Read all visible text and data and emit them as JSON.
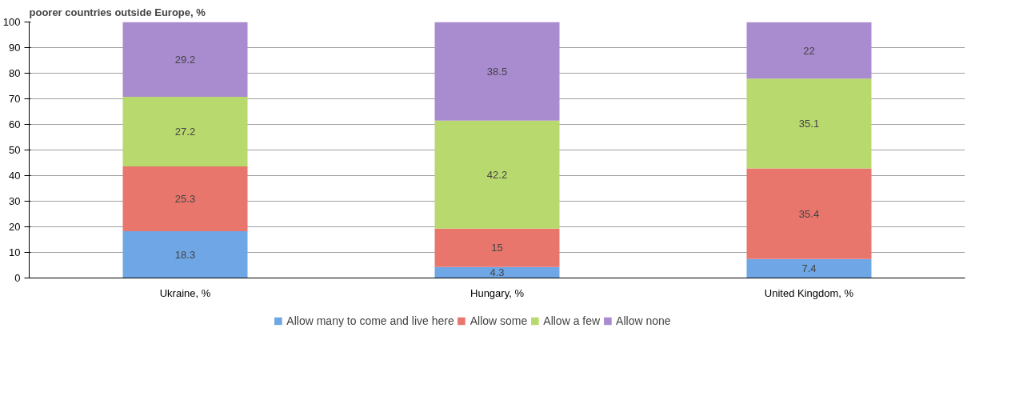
{
  "chart_data": {
    "type": "bar",
    "stacked": true,
    "title": "poorer countries outside Europe, %",
    "categories": [
      "Ukraine, %",
      "Hungary, %",
      "United Kingdom, %"
    ],
    "series": [
      {
        "name": "Allow many to come and live here",
        "color": "#6fa6e6",
        "values": [
          18.3,
          4.3,
          7.4
        ]
      },
      {
        "name": "Allow some",
        "color": "#e8766c",
        "values": [
          25.3,
          15,
          35.4
        ]
      },
      {
        "name": "Allow a few",
        "color": "#b8d96e",
        "values": [
          27.2,
          42.2,
          35.1
        ]
      },
      {
        "name": "Allow none",
        "color": "#a98bd0",
        "values": [
          29.2,
          38.5,
          22
        ]
      }
    ],
    "ylim": [
      0,
      100
    ],
    "yticks": [
      0,
      10,
      20,
      30,
      40,
      50,
      60,
      70,
      80,
      90,
      100
    ],
    "grid": "y",
    "legend": "bottom",
    "data_labels": true
  }
}
